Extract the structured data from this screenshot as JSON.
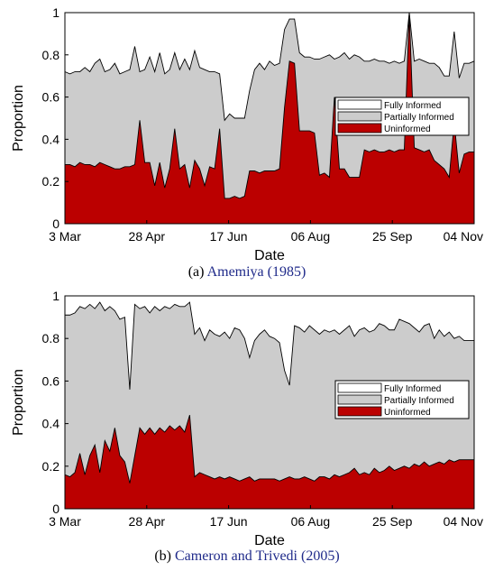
{
  "chart_data": [
    {
      "type": "area",
      "stacked": true,
      "caption_prefix": "(a) ",
      "caption_cite": "Amemiya (1985)",
      "xlabel": "Date",
      "ylabel": "Proportion",
      "ylim": [
        0,
        1
      ],
      "yticks": [
        "0",
        "0.2",
        "0.4",
        "0.6",
        "0.8",
        "1"
      ],
      "xticks": [
        "3 Mar",
        "28 Apr",
        "17 Jun",
        "06 Aug",
        "25 Sep",
        "04 Nov"
      ],
      "legend_position": "right",
      "legend": [
        "Fully Informed",
        "Partially Informed",
        "Uninformed"
      ],
      "colors": {
        "fully": "#ffffff",
        "partial": "#cccccc",
        "uninformed": "#bb0000",
        "line": "#000000"
      },
      "x": [
        0,
        3,
        6,
        9,
        12,
        15,
        18,
        21,
        24,
        27,
        30,
        33,
        36,
        39,
        42,
        45,
        48,
        51,
        54,
        57,
        60,
        63,
        66,
        69,
        72,
        75,
        78,
        81,
        84,
        87,
        90,
        93,
        96,
        99,
        102,
        105,
        108,
        111,
        114,
        117,
        120,
        123,
        126,
        129,
        132,
        135,
        138,
        141,
        144,
        147,
        150,
        153,
        156,
        159,
        162,
        165,
        168,
        171,
        174,
        177,
        180,
        183,
        186,
        189,
        192,
        195,
        198,
        201,
        204,
        207,
        210,
        213,
        216,
        219,
        222,
        225,
        228,
        231,
        234,
        237,
        240,
        243,
        246
      ],
      "uninformed": [
        0.28,
        0.28,
        0.27,
        0.29,
        0.28,
        0.28,
        0.27,
        0.29,
        0.28,
        0.27,
        0.26,
        0.26,
        0.27,
        0.27,
        0.28,
        0.49,
        0.29,
        0.29,
        0.18,
        0.29,
        0.17,
        0.26,
        0.45,
        0.26,
        0.28,
        0.17,
        0.3,
        0.26,
        0.18,
        0.27,
        0.26,
        0.45,
        0.12,
        0.12,
        0.13,
        0.12,
        0.13,
        0.25,
        0.25,
        0.24,
        0.25,
        0.25,
        0.25,
        0.26,
        0.55,
        0.77,
        0.76,
        0.44,
        0.44,
        0.44,
        0.43,
        0.23,
        0.24,
        0.22,
        0.6,
        0.26,
        0.26,
        0.22,
        0.22,
        0.22,
        0.35,
        0.34,
        0.35,
        0.34,
        0.34,
        0.35,
        0.34,
        0.35,
        0.35,
        1.0,
        0.36,
        0.35,
        0.34,
        0.35,
        0.3,
        0.28,
        0.26,
        0.22,
        0.48,
        0.24,
        0.33,
        0.34,
        0.34
      ],
      "partially_informed_top": [
        0.72,
        0.71,
        0.72,
        0.72,
        0.74,
        0.72,
        0.76,
        0.78,
        0.72,
        0.73,
        0.76,
        0.71,
        0.72,
        0.73,
        0.84,
        0.72,
        0.73,
        0.79,
        0.72,
        0.81,
        0.71,
        0.73,
        0.81,
        0.73,
        0.78,
        0.73,
        0.82,
        0.74,
        0.73,
        0.72,
        0.72,
        0.71,
        0.49,
        0.52,
        0.5,
        0.5,
        0.5,
        0.63,
        0.73,
        0.76,
        0.73,
        0.77,
        0.75,
        0.76,
        0.92,
        0.97,
        0.97,
        0.81,
        0.79,
        0.79,
        0.78,
        0.78,
        0.79,
        0.8,
        0.78,
        0.79,
        0.81,
        0.78,
        0.8,
        0.79,
        0.77,
        0.77,
        0.78,
        0.77,
        0.77,
        0.76,
        0.77,
        0.76,
        0.77,
        1.0,
        0.77,
        0.78,
        0.77,
        0.76,
        0.76,
        0.74,
        0.7,
        0.7,
        0.91,
        0.69,
        0.76,
        0.76,
        0.77
      ]
    },
    {
      "type": "area",
      "stacked": true,
      "caption_prefix": "(b) ",
      "caption_cite": "Cameron and Trivedi (2005)",
      "xlabel": "Date",
      "ylabel": "Proportion",
      "ylim": [
        0,
        1
      ],
      "yticks": [
        "0",
        "0.2",
        "0.4",
        "0.6",
        "0.8",
        "1"
      ],
      "xticks": [
        "3 Mar",
        "28 Apr",
        "17 Jun",
        "06 Aug",
        "25 Sep",
        "04 Nov"
      ],
      "legend_position": "right",
      "legend": [
        "Fully Informed",
        "Partially Informed",
        "Uninformed"
      ],
      "colors": {
        "fully": "#ffffff",
        "partial": "#cccccc",
        "uninformed": "#bb0000",
        "line": "#000000"
      },
      "x": [
        0,
        3,
        6,
        9,
        12,
        15,
        18,
        21,
        24,
        27,
        30,
        33,
        36,
        39,
        42,
        45,
        48,
        51,
        54,
        57,
        60,
        63,
        66,
        69,
        72,
        75,
        78,
        81,
        84,
        87,
        90,
        93,
        96,
        99,
        102,
        105,
        108,
        111,
        114,
        117,
        120,
        123,
        126,
        129,
        132,
        135,
        138,
        141,
        144,
        147,
        150,
        153,
        156,
        159,
        162,
        165,
        168,
        171,
        174,
        177,
        180,
        183,
        186,
        189,
        192,
        195,
        198,
        201,
        204,
        207,
        210,
        213,
        216,
        219,
        222,
        225,
        228,
        231,
        234,
        237,
        240,
        243,
        246
      ],
      "uninformed": [
        0.16,
        0.15,
        0.17,
        0.26,
        0.16,
        0.25,
        0.3,
        0.17,
        0.32,
        0.27,
        0.38,
        0.25,
        0.22,
        0.12,
        0.25,
        0.38,
        0.35,
        0.38,
        0.35,
        0.38,
        0.36,
        0.39,
        0.37,
        0.39,
        0.36,
        0.44,
        0.15,
        0.17,
        0.16,
        0.15,
        0.14,
        0.15,
        0.14,
        0.15,
        0.14,
        0.13,
        0.14,
        0.15,
        0.13,
        0.14,
        0.14,
        0.14,
        0.14,
        0.13,
        0.14,
        0.15,
        0.14,
        0.14,
        0.15,
        0.14,
        0.13,
        0.15,
        0.15,
        0.14,
        0.16,
        0.15,
        0.16,
        0.17,
        0.19,
        0.16,
        0.17,
        0.16,
        0.19,
        0.17,
        0.18,
        0.2,
        0.18,
        0.19,
        0.2,
        0.19,
        0.21,
        0.2,
        0.22,
        0.2,
        0.21,
        0.22,
        0.21,
        0.23,
        0.22,
        0.23,
        0.23,
        0.23,
        0.23
      ],
      "partially_informed_top": [
        0.91,
        0.91,
        0.92,
        0.95,
        0.94,
        0.96,
        0.94,
        0.97,
        0.93,
        0.95,
        0.93,
        0.89,
        0.9,
        0.56,
        0.96,
        0.94,
        0.95,
        0.92,
        0.95,
        0.93,
        0.95,
        0.94,
        0.96,
        0.95,
        0.95,
        0.97,
        0.82,
        0.85,
        0.79,
        0.84,
        0.82,
        0.81,
        0.83,
        0.8,
        0.85,
        0.84,
        0.8,
        0.71,
        0.79,
        0.82,
        0.84,
        0.81,
        0.8,
        0.78,
        0.65,
        0.58,
        0.86,
        0.85,
        0.83,
        0.86,
        0.84,
        0.82,
        0.84,
        0.83,
        0.84,
        0.82,
        0.84,
        0.86,
        0.81,
        0.84,
        0.85,
        0.83,
        0.84,
        0.87,
        0.86,
        0.84,
        0.84,
        0.89,
        0.88,
        0.87,
        0.85,
        0.83,
        0.86,
        0.87,
        0.8,
        0.84,
        0.81,
        0.83,
        0.8,
        0.81,
        0.79,
        0.79,
        0.79
      ]
    }
  ]
}
